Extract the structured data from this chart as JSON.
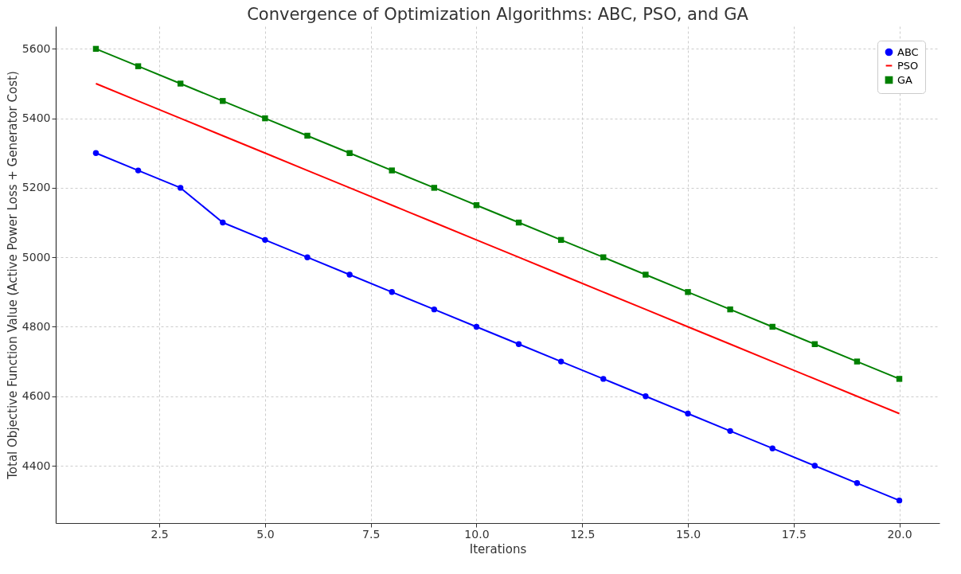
{
  "chart_data": {
    "type": "line",
    "title": "Convergence of Optimization Algorithms: ABC, PSO, and GA",
    "xlabel": "Iterations",
    "ylabel": "Total Objective Function Value (Active Power Loss + Generator Cost)",
    "x": [
      1,
      2,
      3,
      4,
      5,
      6,
      7,
      8,
      9,
      10,
      11,
      12,
      13,
      14,
      15,
      16,
      17,
      18,
      19,
      20
    ],
    "series": [
      {
        "name": "ABC",
        "color": "#0000ff",
        "marker": "circle",
        "values": [
          5300,
          5250,
          5200,
          5100,
          5050,
          5000,
          4950,
          4900,
          4850,
          4800,
          4750,
          4700,
          4650,
          4600,
          4550,
          4500,
          4450,
          4400,
          4350,
          4300
        ]
      },
      {
        "name": "PSO",
        "color": "#ff0000",
        "marker": "none",
        "values": [
          5500,
          5450,
          5400,
          5350,
          5300,
          5250,
          5200,
          5150,
          5100,
          5050,
          5000,
          4950,
          4900,
          4850,
          4800,
          4750,
          4700,
          4650,
          4600,
          4550
        ]
      },
      {
        "name": "GA",
        "color": "#008000",
        "marker": "square",
        "values": [
          5600,
          5550,
          5500,
          5450,
          5400,
          5350,
          5300,
          5250,
          5200,
          5150,
          5100,
          5050,
          5000,
          4950,
          4900,
          4850,
          4800,
          4750,
          4700,
          4650
        ]
      }
    ],
    "xlim": [
      0.05,
      20.95
    ],
    "xticks": [
      2.5,
      {
        "value": 5,
        "label": "5.0"
      },
      7.5,
      {
        "value": 10,
        "label": "10.0"
      },
      12.5,
      {
        "value": 15,
        "label": "15.0"
      },
      17.5,
      {
        "value": 20,
        "label": "20.0"
      }
    ],
    "ylim": [
      4235,
      5665
    ],
    "yticks": [
      4400,
      4600,
      4800,
      5000,
      5200,
      5400,
      5600
    ],
    "grid": true,
    "legend": "top right",
    "line_style": "solid"
  }
}
